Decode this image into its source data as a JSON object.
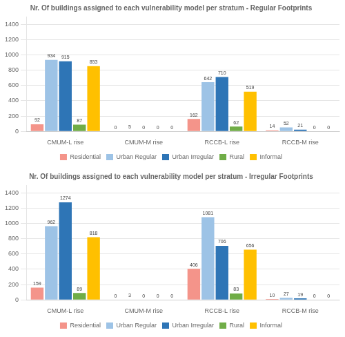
{
  "chart_data": [
    {
      "type": "bar",
      "title": "Nr. Of buildings assigned to each vulnerability model per stratum - Regular Footprints",
      "categories": [
        "CMUM-L rise",
        "CMUM-M rise",
        "RCCB-L rise",
        "RCCB-M rise"
      ],
      "series": [
        {
          "name": "Residential",
          "color": "#f4948a",
          "values": [
            92,
            0,
            162,
            14
          ]
        },
        {
          "name": "Urban Regular",
          "color": "#9dc3e6",
          "values": [
            934,
            5,
            642,
            52
          ]
        },
        {
          "name": "Urban Irregular",
          "color": "#2e75b6",
          "values": [
            915,
            0,
            710,
            21
          ]
        },
        {
          "name": "Rural",
          "color": "#70ad47",
          "values": [
            87,
            0,
            62,
            0
          ]
        },
        {
          "name": "Informal",
          "color": "#ffc000",
          "values": [
            853,
            0,
            519,
            0
          ]
        }
      ],
      "ylim": [
        0,
        1500
      ],
      "yticks": [
        0,
        200,
        400,
        600,
        800,
        1000,
        1200,
        1400
      ],
      "grid": true,
      "data_labels": true,
      "legend": "bottom"
    },
    {
      "type": "bar",
      "title": "Nr. Of buildings assigned to each vulnerability model per stratum - Irregular Footprints",
      "categories": [
        "CMUM-L rise",
        "CMUM-M rise",
        "RCCB-L rise",
        "RCCB-M rise"
      ],
      "series": [
        {
          "name": "Residential",
          "color": "#f4948a",
          "values": [
            159,
            0,
            406,
            10
          ]
        },
        {
          "name": "Urban Regular",
          "color": "#9dc3e6",
          "values": [
            962,
            3,
            1081,
            27
          ]
        },
        {
          "name": "Urban Irregular",
          "color": "#2e75b6",
          "values": [
            1274,
            0,
            706,
            19
          ]
        },
        {
          "name": "Rural",
          "color": "#70ad47",
          "values": [
            89,
            0,
            83,
            0
          ]
        },
        {
          "name": "Informal",
          "color": "#ffc000",
          "values": [
            818,
            0,
            656,
            0
          ]
        }
      ],
      "ylim": [
        0,
        1500
      ],
      "yticks": [
        0,
        200,
        400,
        600,
        800,
        1000,
        1200,
        1400
      ],
      "grid": true,
      "data_labels": true,
      "legend": "bottom"
    }
  ]
}
